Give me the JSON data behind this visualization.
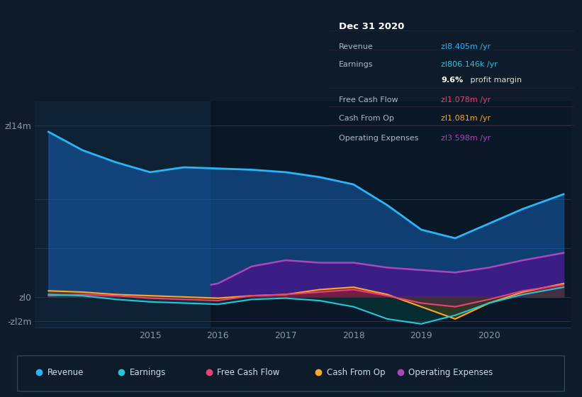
{
  "bg_color": "#0d1b2a",
  "plot_bg": "#0f2235",
  "grid_color": "#1e3550",
  "ylim": [
    -2500000,
    16000000
  ],
  "xlim": [
    2013.3,
    2021.2
  ],
  "xlabel_years": [
    2015,
    2016,
    2017,
    2018,
    2019,
    2020
  ],
  "legend_items": [
    {
      "label": "Revenue",
      "color": "#29b6f6"
    },
    {
      "label": "Earnings",
      "color": "#26c6da"
    },
    {
      "label": "Free Cash Flow",
      "color": "#ec407a"
    },
    {
      "label": "Cash From Op",
      "color": "#ffa726"
    },
    {
      "label": "Operating Expenses",
      "color": "#ab47bc"
    }
  ],
  "info_box_title": "Dec 31 2020",
  "info_rows": [
    {
      "label": "Revenue",
      "value": "zl8.405m /yr",
      "value_color": "#29b6f6",
      "bold_prefix": ""
    },
    {
      "label": "Earnings",
      "value": "zl806.146k /yr",
      "value_color": "#26c6da",
      "bold_prefix": ""
    },
    {
      "label": "",
      "value": " profit margin",
      "value_color": "#dddddd",
      "bold_prefix": "9.6%"
    },
    {
      "label": "Free Cash Flow",
      "value": "zl1.078m /yr",
      "value_color": "#ec407a",
      "bold_prefix": ""
    },
    {
      "label": "Cash From Op",
      "value": "zl1.081m /yr",
      "value_color": "#ffa726",
      "bold_prefix": ""
    },
    {
      "label": "Operating Expenses",
      "value": "zl3.598m /yr",
      "value_color": "#ab47bc",
      "bold_prefix": ""
    }
  ],
  "shaded_region_start": 2015.9,
  "revenue": {
    "x": [
      2013.5,
      2014.0,
      2014.5,
      2015.0,
      2015.5,
      2016.0,
      2016.5,
      2017.0,
      2017.5,
      2018.0,
      2018.5,
      2019.0,
      2019.5,
      2020.0,
      2020.5,
      2021.1
    ],
    "y": [
      13500000,
      12000000,
      11000000,
      10200000,
      10600000,
      10500000,
      10400000,
      10200000,
      9800000,
      9200000,
      7500000,
      5500000,
      4800000,
      6000000,
      7200000,
      8400000
    ]
  },
  "earnings": {
    "x": [
      2013.5,
      2014.0,
      2014.5,
      2015.0,
      2015.5,
      2016.0,
      2016.5,
      2017.0,
      2017.5,
      2018.0,
      2018.5,
      2019.0,
      2019.5,
      2020.0,
      2020.5,
      2021.1
    ],
    "y": [
      200000,
      100000,
      -200000,
      -400000,
      -500000,
      -600000,
      -200000,
      -100000,
      -300000,
      -800000,
      -1800000,
      -2200000,
      -1500000,
      -500000,
      200000,
      800000
    ]
  },
  "free_cash_flow": {
    "x": [
      2013.5,
      2014.0,
      2014.5,
      2015.0,
      2015.5,
      2016.0,
      2016.5,
      2017.0,
      2017.5,
      2018.0,
      2018.5,
      2019.0,
      2019.5,
      2020.0,
      2020.5,
      2021.1
    ],
    "y": [
      100000,
      200000,
      100000,
      -100000,
      -200000,
      -300000,
      100000,
      200000,
      400000,
      600000,
      100000,
      -500000,
      -800000,
      -200000,
      500000,
      1000000
    ]
  },
  "cash_from_op": {
    "x": [
      2013.5,
      2014.0,
      2014.5,
      2015.0,
      2015.5,
      2016.0,
      2016.5,
      2017.0,
      2017.5,
      2018.0,
      2018.5,
      2019.0,
      2019.5,
      2020.0,
      2020.5,
      2021.1
    ],
    "y": [
      500000,
      400000,
      200000,
      100000,
      0,
      -100000,
      100000,
      200000,
      600000,
      800000,
      200000,
      -800000,
      -1800000,
      -500000,
      400000,
      1100000
    ]
  },
  "operating_expenses": {
    "x": [
      2015.9,
      2016.0,
      2016.5,
      2017.0,
      2017.5,
      2018.0,
      2018.5,
      2019.0,
      2019.5,
      2020.0,
      2020.5,
      2021.1
    ],
    "y": [
      1000000,
      1100000,
      2500000,
      3000000,
      2800000,
      2800000,
      2400000,
      2200000,
      2000000,
      2400000,
      3000000,
      3600000
    ]
  }
}
